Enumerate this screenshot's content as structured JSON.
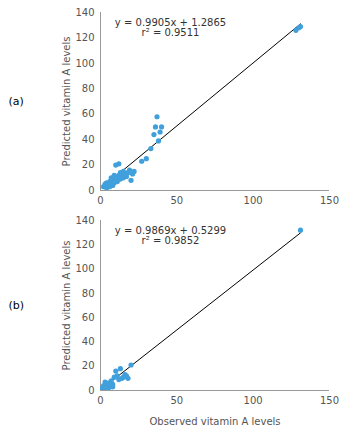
{
  "chart_data": [
    {
      "type": "scatter",
      "panel": "(a)",
      "ylabel": "Predicted vitamin A levels",
      "annotations": [
        "y = 0.9905x + 1.2865",
        "r² = 0.9511"
      ],
      "trendline": {
        "slope": 0.9905,
        "intercept": 1.2865
      },
      "color": "#41a0dc",
      "x": [
        2,
        3,
        4,
        4,
        5,
        6,
        6,
        7,
        8,
        8,
        9,
        10,
        10,
        11,
        12,
        12,
        13,
        13,
        14,
        15,
        15,
        16,
        17,
        18,
        19,
        20,
        21,
        22,
        9,
        7,
        27,
        30,
        33,
        35,
        36,
        37,
        39,
        40,
        38,
        128,
        130,
        131
      ],
      "y": [
        3,
        5,
        2,
        6,
        4,
        7,
        3,
        5,
        8,
        4,
        6,
        10,
        20,
        7,
        12,
        21,
        9,
        14,
        12,
        10,
        15,
        13,
        11,
        14,
        16,
        8,
        13,
        15,
        12,
        10,
        23,
        25,
        33,
        44,
        50,
        58,
        46,
        50,
        39,
        126,
        128,
        129
      ],
      "xlim": [
        0,
        150
      ],
      "xticks": [
        0,
        50,
        100,
        150
      ],
      "ylim": [
        0,
        140
      ],
      "yticks": [
        0,
        20,
        40,
        60,
        80,
        100,
        120,
        140
      ]
    },
    {
      "type": "scatter",
      "panel": "(b)",
      "xlabel": "Observed vitamin A levels",
      "ylabel": "Predicted vitamin A levels",
      "annotations": [
        "y = 0.9869x + 0.5299",
        "r² = 0.9852"
      ],
      "trendline": {
        "slope": 0.9869,
        "intercept": 0.5299
      },
      "color": "#41a0dc",
      "x": [
        1,
        2,
        3,
        4,
        5,
        6,
        7,
        8,
        9,
        10,
        11,
        12,
        13,
        14,
        15,
        16,
        17,
        18,
        20,
        8,
        5,
        3,
        131
      ],
      "y": [
        2,
        4,
        1,
        5,
        6,
        3,
        8,
        5,
        11,
        16,
        12,
        9,
        18,
        10,
        11,
        13,
        12,
        10,
        21,
        3,
        1,
        7,
        132
      ],
      "xlim": [
        0,
        150
      ],
      "xticks": [
        0,
        50,
        100,
        150
      ],
      "ylim": [
        0,
        140
      ],
      "yticks": [
        0,
        20,
        40,
        60,
        80,
        100,
        120,
        140
      ]
    }
  ]
}
